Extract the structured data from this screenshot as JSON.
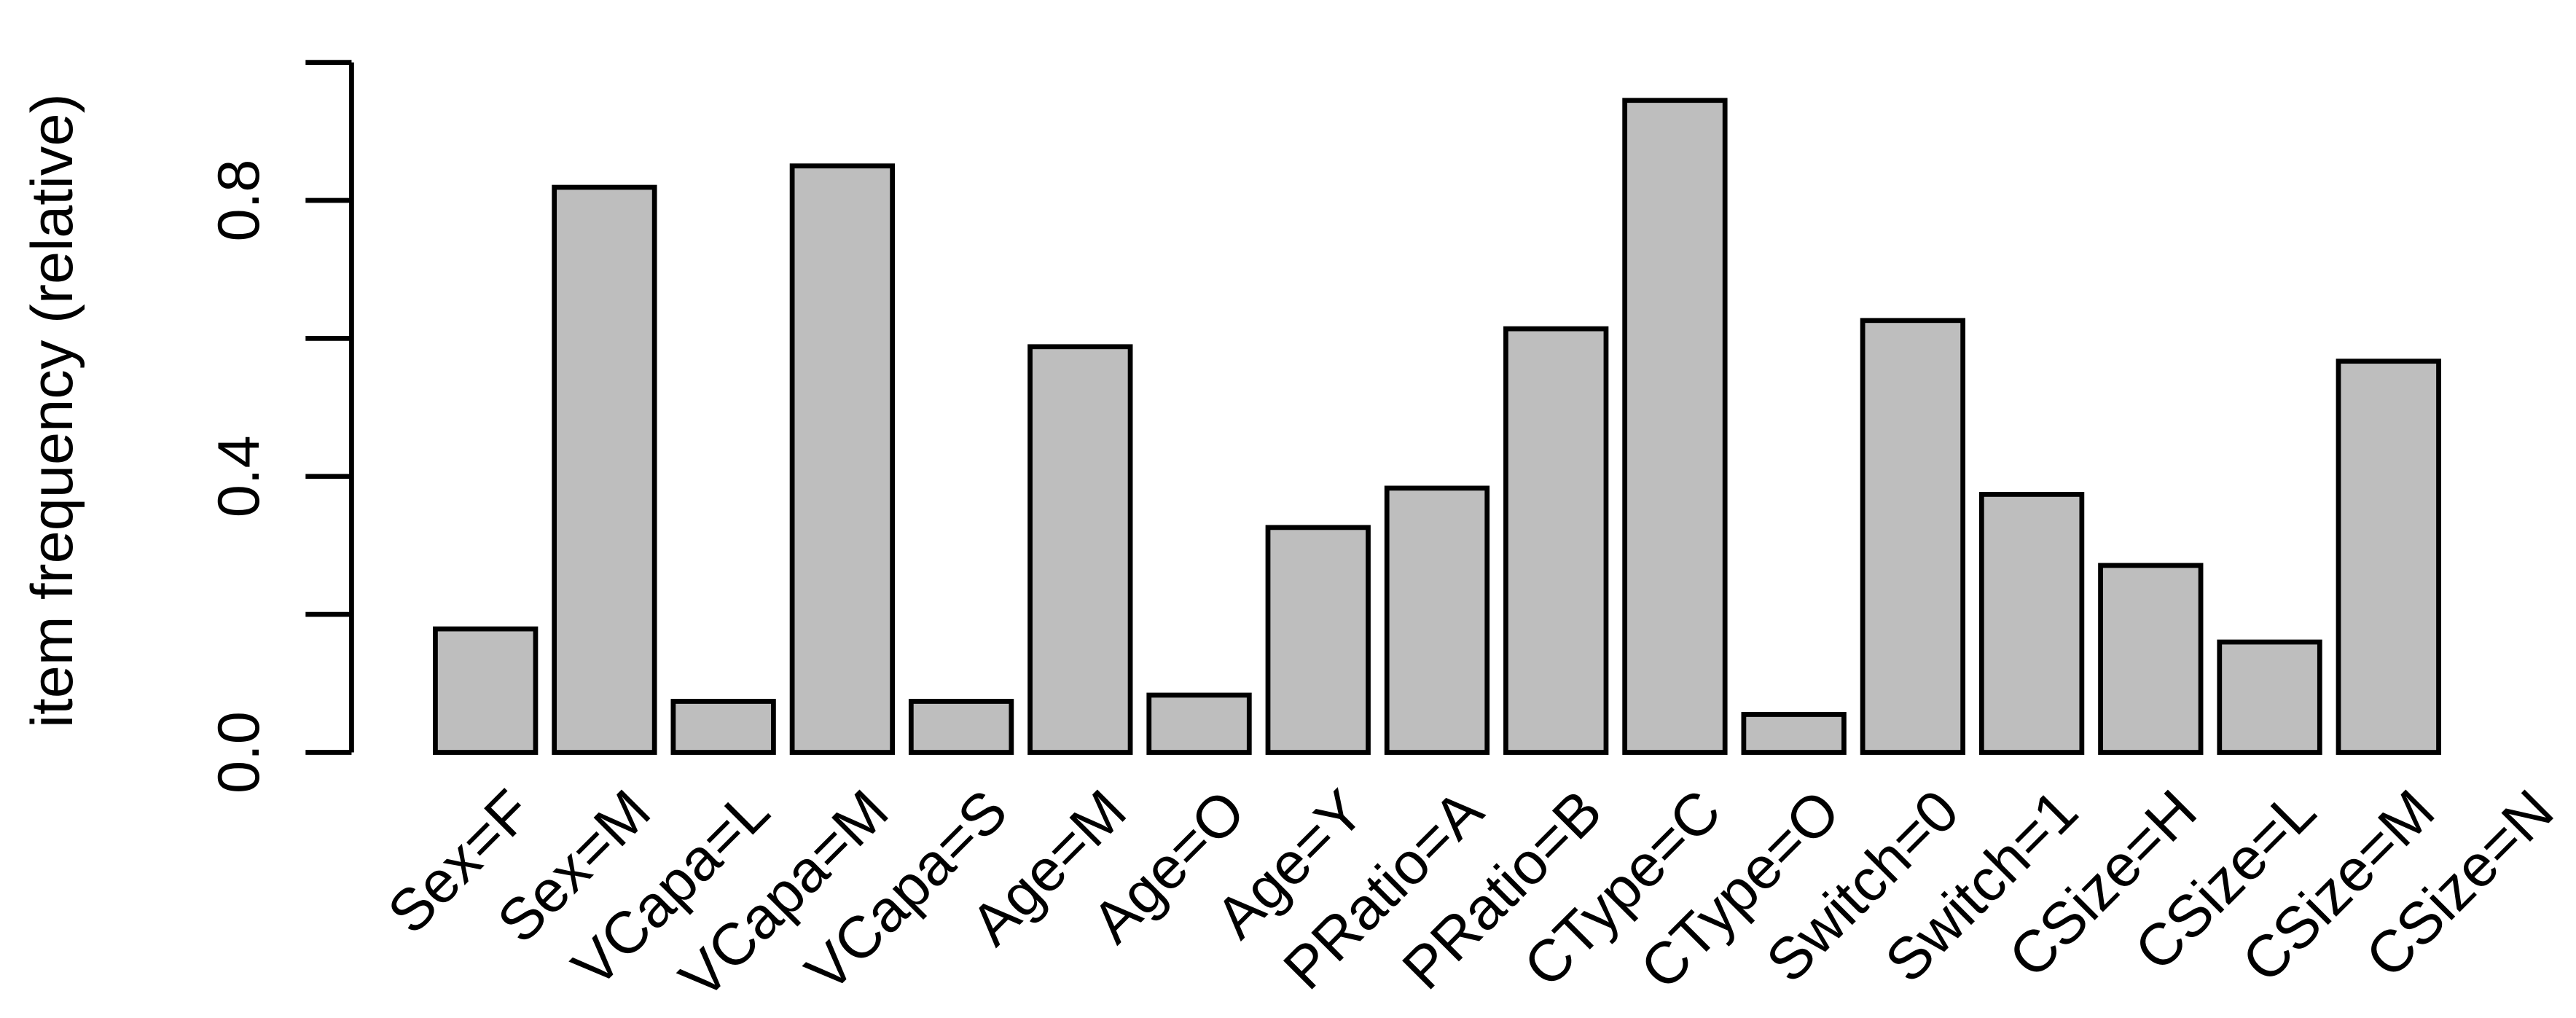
{
  "chart_data": {
    "type": "bar",
    "y_label": "item frequency (relative)",
    "categories": [
      "Sex=F",
      "Sex=M",
      "VCapa=L",
      "VCapa=M",
      "VCapa=S",
      "Age=M",
      "Age=O",
      "Age=Y",
      "PRatio=A",
      "PRatio=B",
      "CType=C",
      "CType=O",
      "Switch=0",
      "Switch=1",
      "CSize=H",
      "CSize=L",
      "CSize=M",
      "CSize=N"
    ],
    "values": [
      0.179,
      0.819,
      0.074,
      0.85,
      0.074,
      0.588,
      0.083,
      0.326,
      0.383,
      0.614,
      0.945,
      0.055,
      0.626,
      0.374,
      0.271,
      0.16,
      0.567,
      0
    ],
    "color": "#bebebe",
    "ylim": [
      0,
      1
    ],
    "yticks": [
      {
        "value": 0,
        "label": "0.0"
      },
      {
        "value": 0.4,
        "label": "0.4"
      },
      {
        "value": 0.8,
        "label": "0.8"
      }
    ],
    "yminor_ticks": [
      0.2,
      0.6,
      1
    ]
  }
}
